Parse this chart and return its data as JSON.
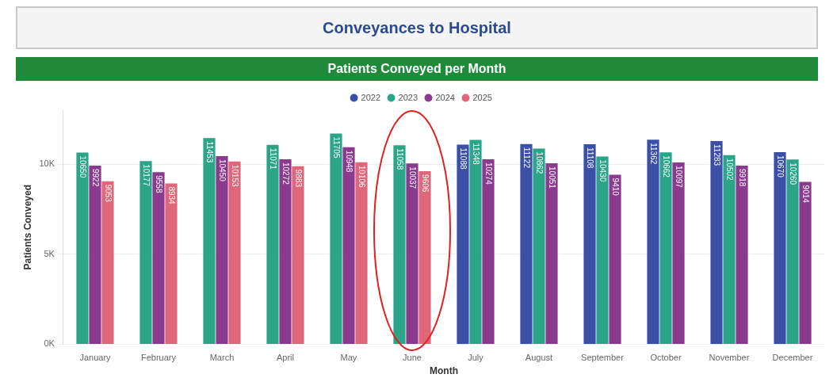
{
  "chart_data": {
    "type": "bar",
    "title": "Conveyances to Hospital",
    "subtitle": "Patients Conveyed per Month",
    "xlabel": "Month",
    "ylabel": "Patients Conveyed",
    "categories": [
      "January",
      "February",
      "March",
      "April",
      "May",
      "June",
      "July",
      "August",
      "September",
      "October",
      "November",
      "December"
    ],
    "series": [
      {
        "name": "2022",
        "color": "#3a4fa8",
        "values": [
          null,
          null,
          null,
          null,
          null,
          null,
          11088,
          11122,
          11108,
          11362,
          11283,
          10670
        ]
      },
      {
        "name": "2023",
        "color": "#2aa58a",
        "values": [
          10650,
          10177,
          11453,
          11071,
          11705,
          11058,
          11348,
          10862,
          10430,
          10662,
          10502,
          10260
        ]
      },
      {
        "name": "2024",
        "color": "#8b3a8f",
        "values": [
          9922,
          9558,
          10450,
          10272,
          10948,
          10037,
          10274,
          10051,
          9410,
          10097,
          9918,
          9014
        ]
      },
      {
        "name": "2025",
        "color": "#e0677a",
        "values": [
          9053,
          8934,
          10153,
          9883,
          10106,
          9606,
          null,
          null,
          null,
          null,
          null,
          null
        ]
      }
    ],
    "ylim": [
      0,
      13000
    ],
    "yticks": [
      {
        "value": 0,
        "label": "0K"
      },
      {
        "value": 5000,
        "label": "5K"
      },
      {
        "value": 10000,
        "label": "10K"
      }
    ],
    "grid": "y",
    "legend": "top",
    "data_labels": true
  }
}
